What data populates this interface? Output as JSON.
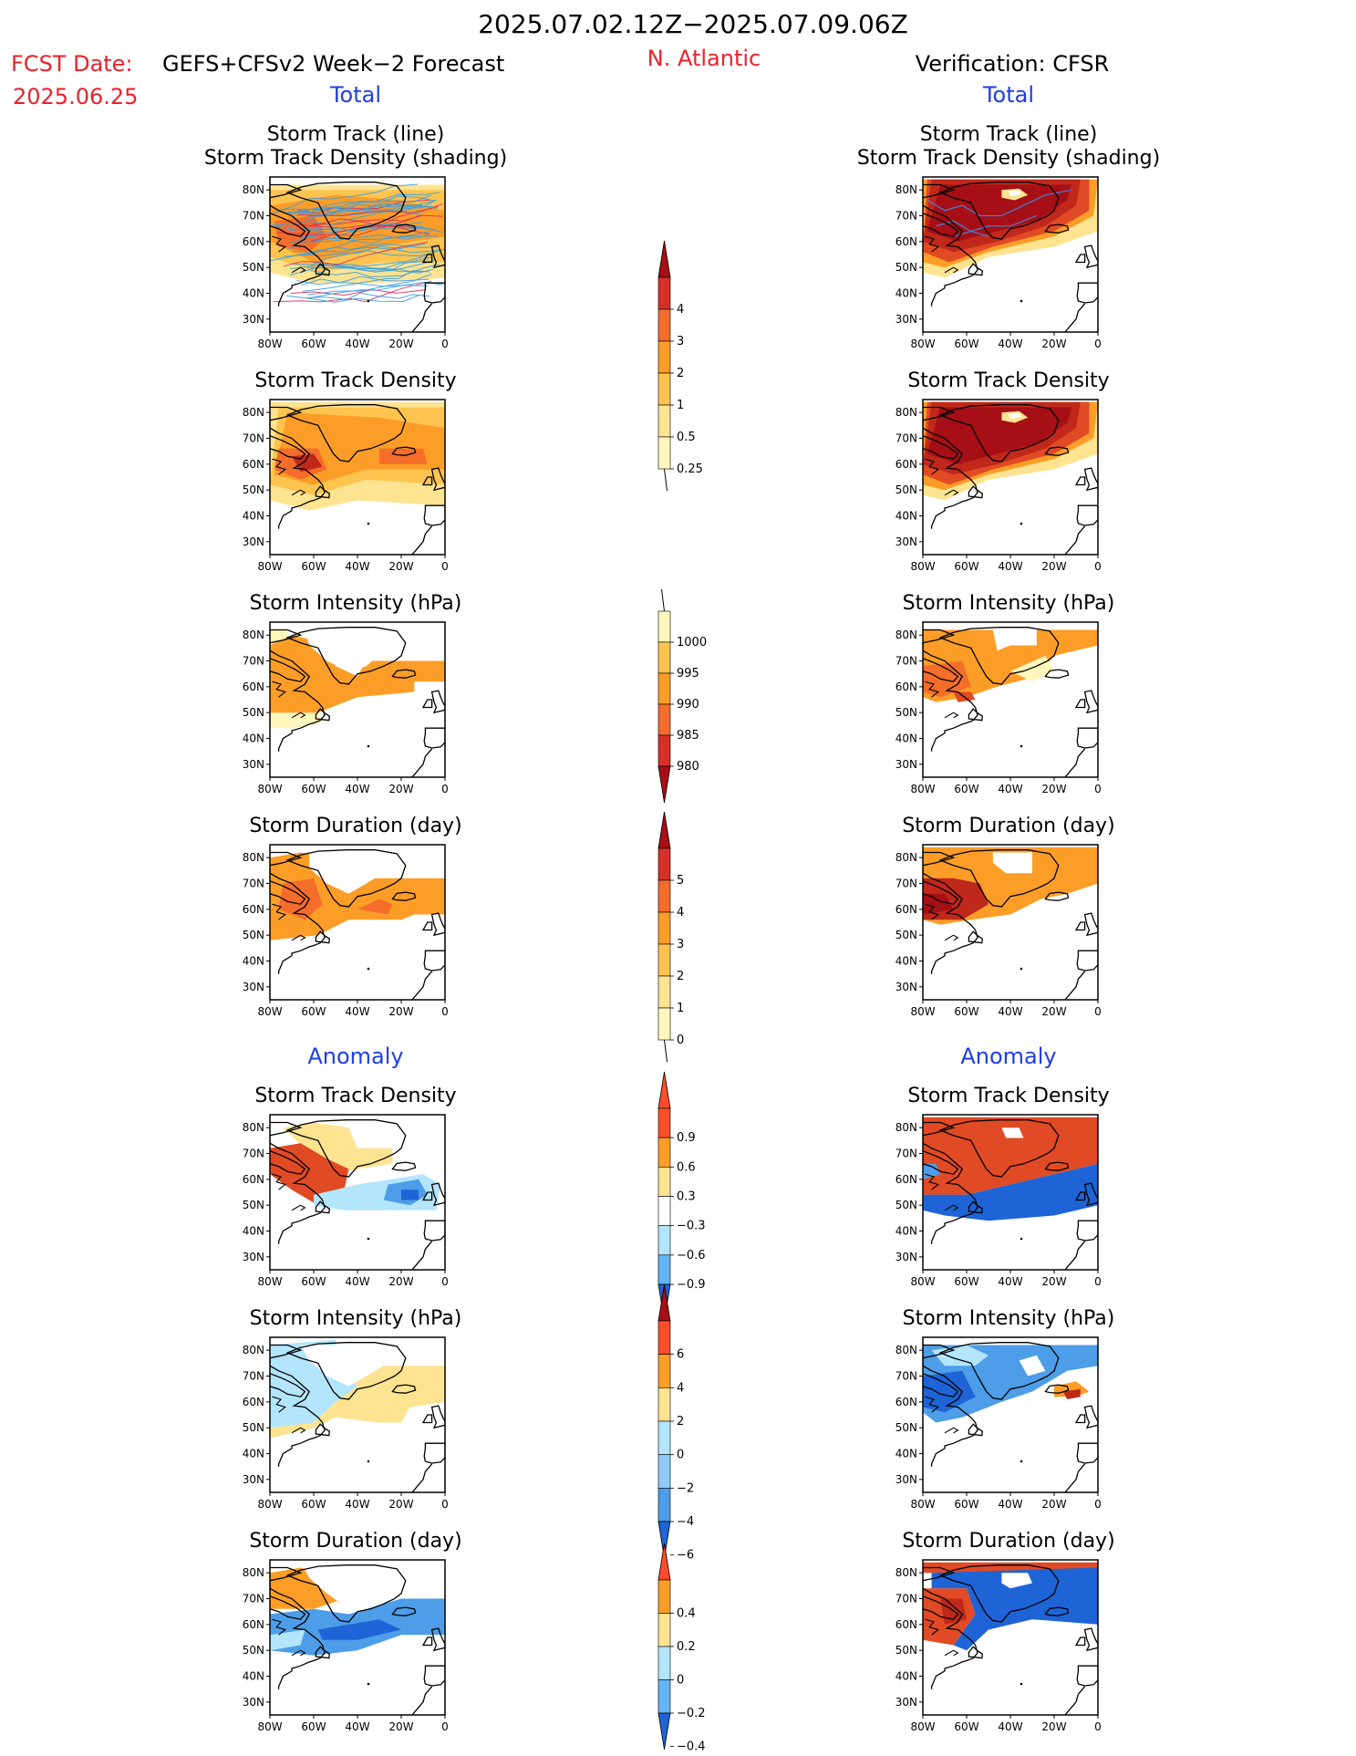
{
  "header": {
    "period": "2025.07.02.12Z−2025.07.09.06Z",
    "fcst_label": "FCST Date:",
    "fcst_model": "GEFS+CFSv2 Week−2 Forecast",
    "fcst_date": "2025.06.25",
    "region": "N. Atlantic",
    "verification": "Verification: CFSR"
  },
  "columns": [
    {
      "key": "forecast",
      "total_label": "Total",
      "anomaly_label": "Anomaly"
    },
    {
      "key": "verification",
      "total_label": "Total",
      "anomaly_label": "Anomaly"
    }
  ],
  "panel_titles": {
    "track": [
      "Storm Track (line)",
      "Storm Track Density (shading)"
    ],
    "density": "Storm Track Density",
    "intensity": "Storm Intensity (hPa)",
    "duration": "Storm Duration (day)"
  },
  "axes": {
    "lon_ticks": [
      "80W",
      "60W",
      "40W",
      "20W",
      "0"
    ],
    "lat_ticks": [
      "80N",
      "70N",
      "60N",
      "50N",
      "40N",
      "30N"
    ]
  },
  "colorbars": [
    {
      "id": "density",
      "labels": [
        "4",
        "3",
        "2",
        "1",
        "0.5",
        "0.25"
      ],
      "colors": [
        "#a50f15",
        "#d73027",
        "#f46d2b",
        "#fc9d27",
        "#fec44f",
        "#fee391",
        "#fff7bc"
      ]
    },
    {
      "id": "intensity",
      "labels": [
        "1000",
        "995",
        "990",
        "985",
        "980"
      ],
      "colors": [
        "#fff7bc",
        "#fec44f",
        "#fc9d27",
        "#f46d2b",
        "#d73027",
        "#a50f15"
      ]
    },
    {
      "id": "duration",
      "labels": [
        "5",
        "4",
        "3",
        "2",
        "1",
        "0"
      ],
      "colors": [
        "#a50f15",
        "#d73027",
        "#f46d2b",
        "#fc9d27",
        "#fec44f",
        "#fee391",
        "#fff7bc"
      ]
    },
    {
      "id": "anom_density",
      "labels": [
        "0.9",
        "0.6",
        "0.3",
        "−0.3",
        "−0.6",
        "−0.9"
      ],
      "colors": [
        "#fc4e2a",
        "#fc4e2a",
        "#fc9d27",
        "#fee391",
        "#ffffff",
        "#b3e5fc",
        "#64b5f6",
        "#1e64d6"
      ]
    },
    {
      "id": "anom_intensity",
      "labels": [
        "6",
        "4",
        "2",
        "0",
        "−2",
        "−4",
        "−6"
      ],
      "colors": [
        "#a50f15",
        "#fc4e2a",
        "#fc9d27",
        "#fee391",
        "#b3e5fc",
        "#90caf9",
        "#4d9de8",
        "#1e64d6"
      ]
    },
    {
      "id": "anom_duration",
      "labels": [
        "0.4",
        "0.2",
        "0",
        "−0.2",
        "−0.4"
      ],
      "colors": [
        "#fc4e2a",
        "#fc9d27",
        "#fee391",
        "#b3e5fc",
        "#64b5f6",
        "#1e64d6"
      ]
    }
  ],
  "colors": {
    "title_blue": "#1f3ee6",
    "fcst_red": "#e8222d",
    "region_red": "#e8222d",
    "track_blue": "#3aa0e0",
    "track_red": "#d9305a"
  }
}
